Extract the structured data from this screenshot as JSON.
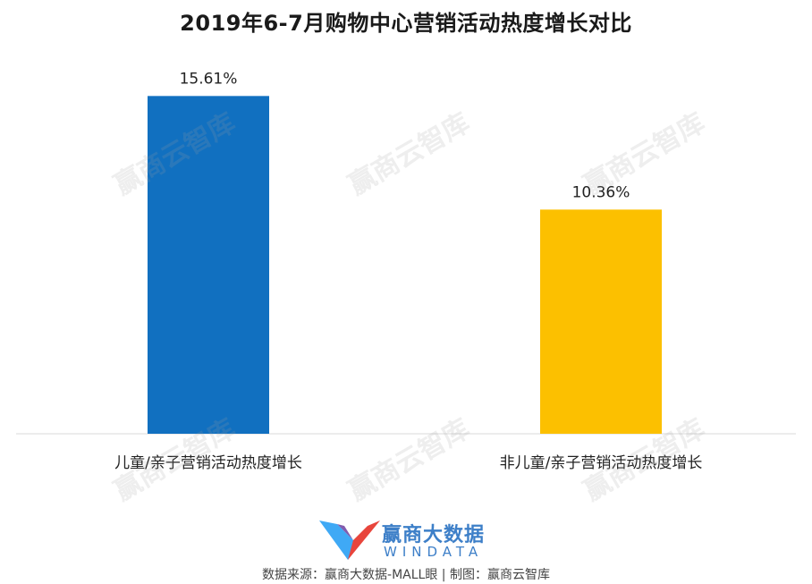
{
  "chart_data": {
    "type": "bar",
    "title": "2019年6-7月购物中心营销活动热度增长对比",
    "categories": [
      "儿童/亲子营销活动热度增长",
      "非儿童/亲子营销活动热度增长"
    ],
    "values": [
      15.61,
      10.36
    ],
    "value_labels": [
      "15.61%",
      "10.36%"
    ],
    "colors": [
      "#1170c0",
      "#fcc000"
    ],
    "xlabel": "",
    "ylabel": "",
    "ylim": [
      0,
      18.6
    ],
    "grid": false,
    "legend": "none"
  },
  "watermark": {
    "text": "赢商云智库"
  },
  "logo": {
    "cn": "赢商大数据",
    "en": "WINDATA"
  },
  "footer": {
    "source": "数据来源：赢商大数据-MALL眼 | 制图：赢商云智库"
  }
}
